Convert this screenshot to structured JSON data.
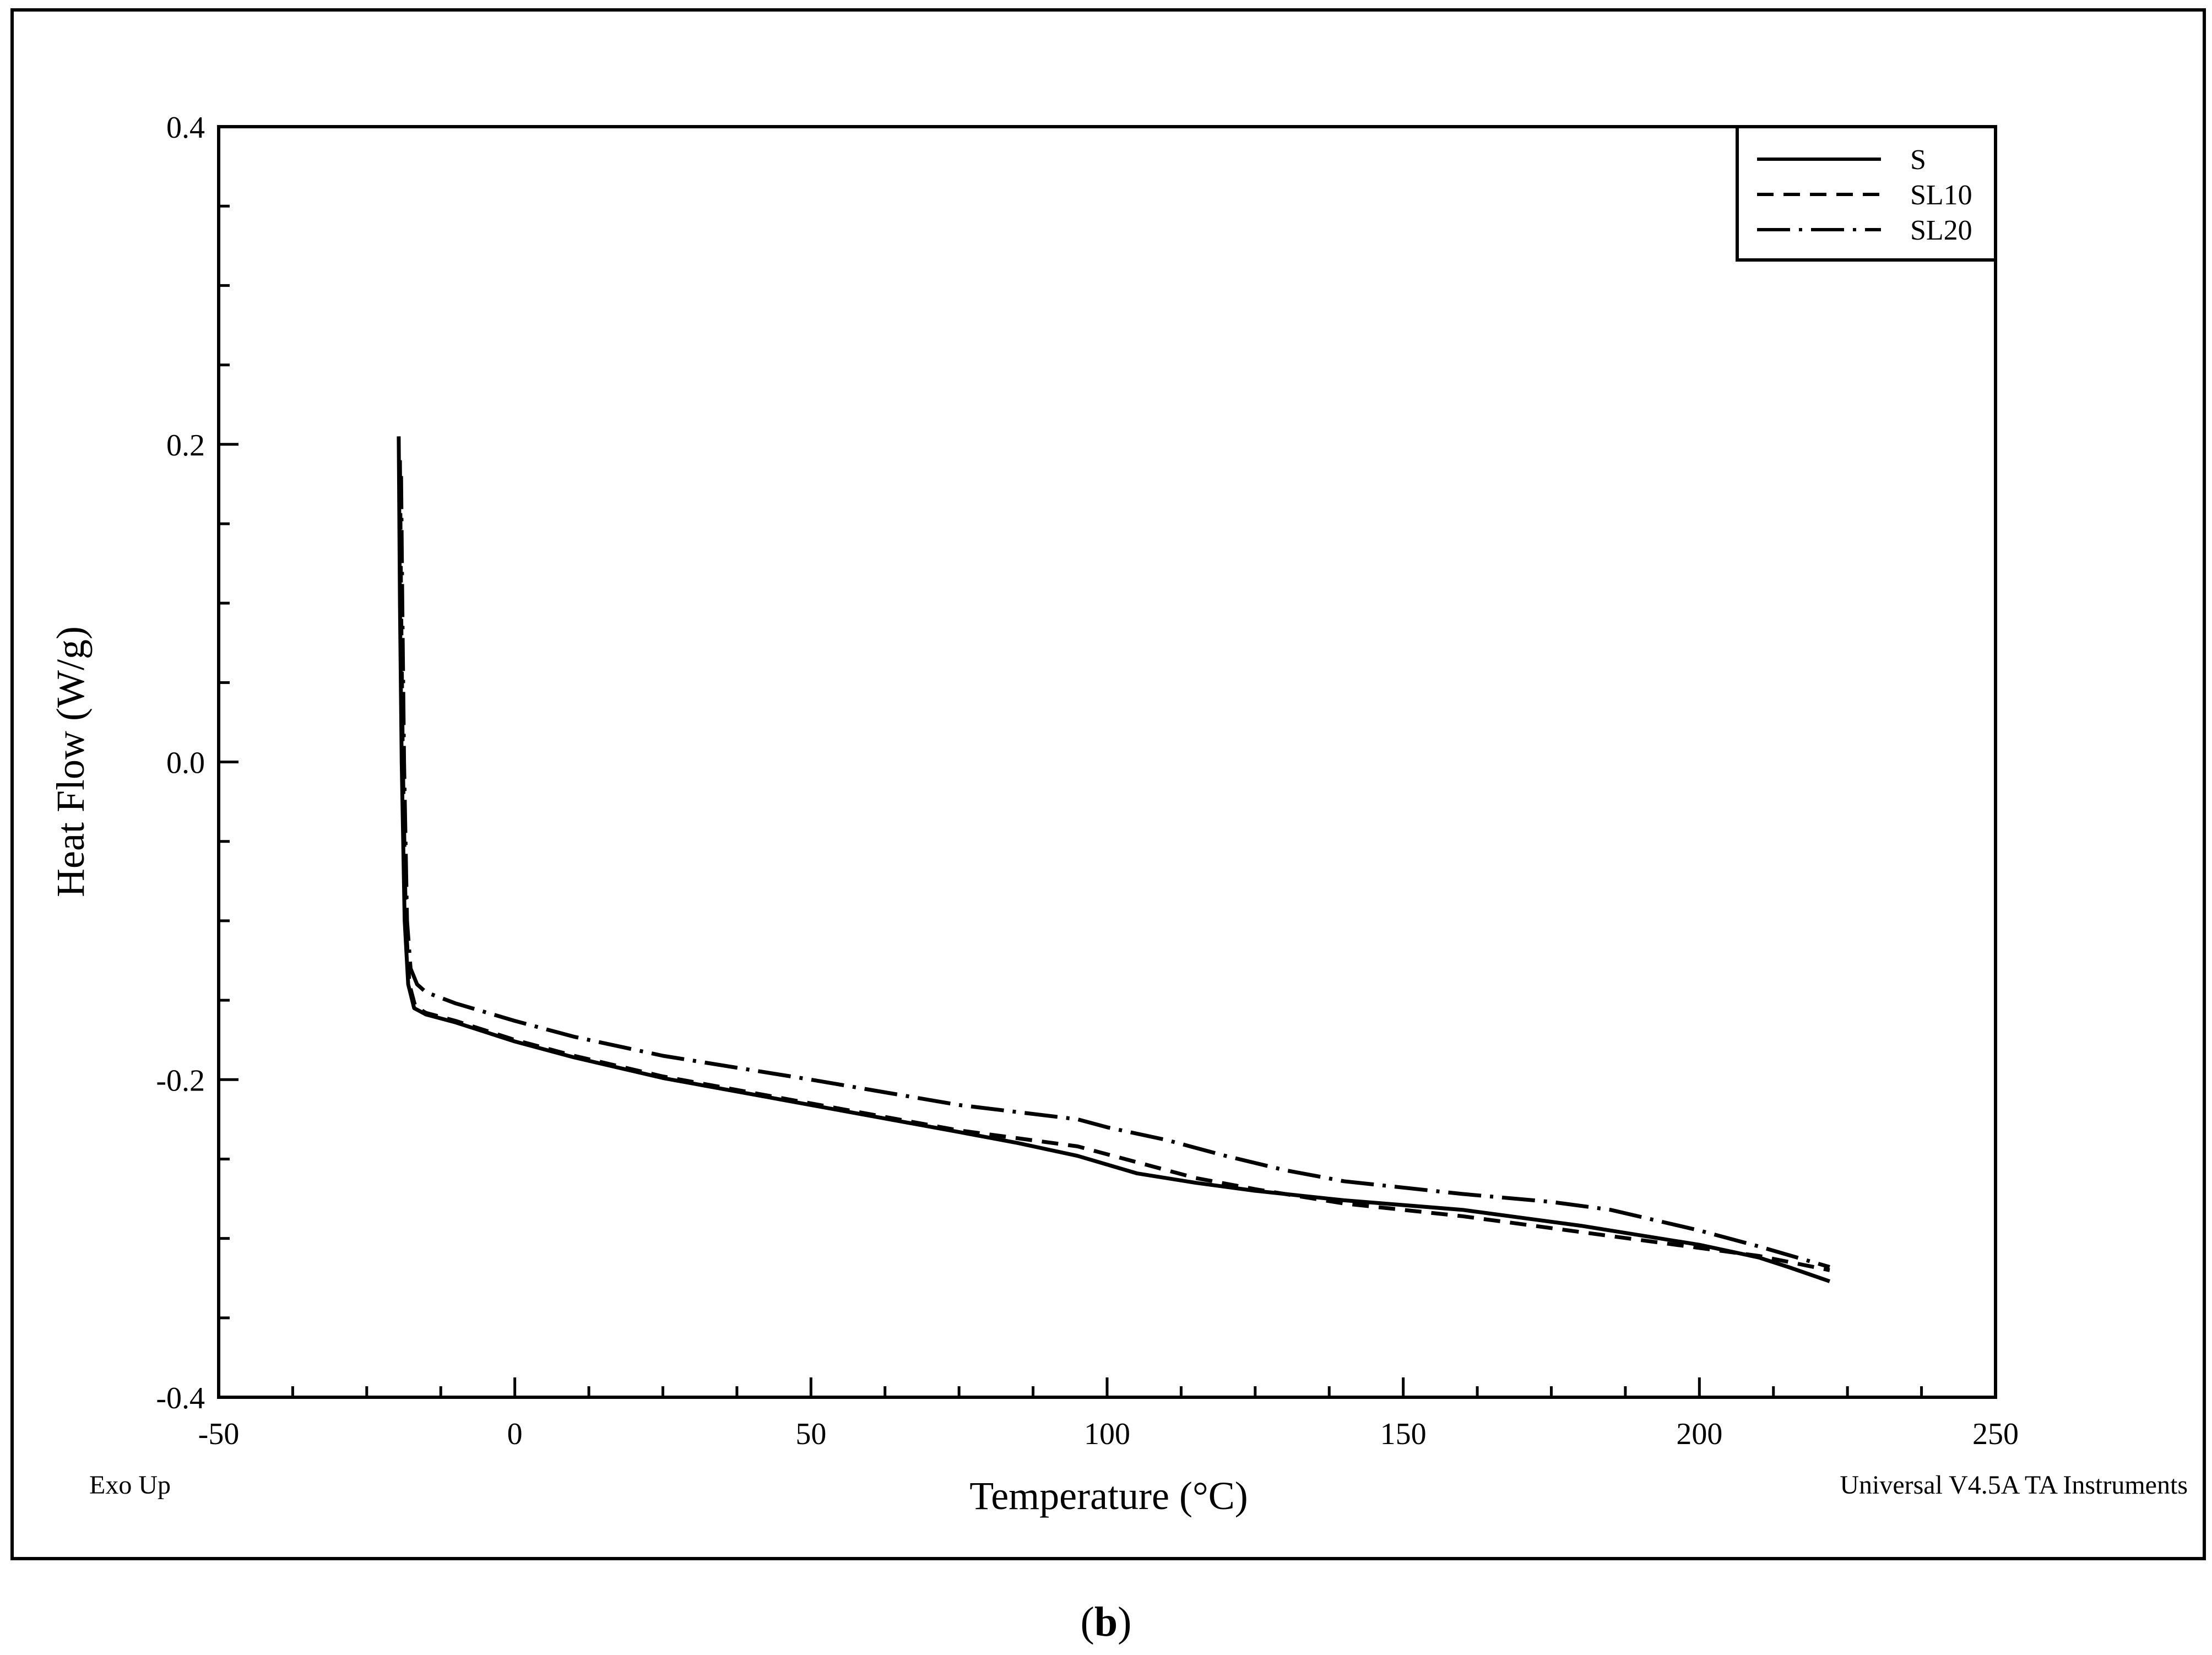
{
  "chart_data": {
    "type": "line",
    "xlabel": "Temperature (°C)",
    "ylabel": "Heat Flow (W/g)",
    "xlim": [
      -50,
      250
    ],
    "ylim": [
      -0.4,
      0.4
    ],
    "x_ticks": [
      -50,
      0,
      50,
      100,
      150,
      200,
      250
    ],
    "x_tick_labels": [
      "-50",
      "0",
      "50",
      "100",
      "150",
      "200",
      "250"
    ],
    "y_ticks": [
      -0.4,
      -0.2,
      0.0,
      0.2,
      0.4
    ],
    "y_tick_labels": [
      "-0.4",
      "-0.2",
      "0.0",
      "0.2",
      "0.4"
    ],
    "grid": false,
    "legend_position": "top-right",
    "series": [
      {
        "name": "S",
        "style": "solid",
        "points": [
          [
            -19.6,
            0.205
          ],
          [
            -19.4,
            0.1
          ],
          [
            -19.1,
            0.0
          ],
          [
            -18.6,
            -0.1
          ],
          [
            -18.0,
            -0.14
          ],
          [
            -17.0,
            -0.155
          ],
          [
            -15,
            -0.159
          ],
          [
            -10,
            -0.164
          ],
          [
            0,
            -0.176
          ],
          [
            10,
            -0.186
          ],
          [
            25,
            -0.199
          ],
          [
            50,
            -0.216
          ],
          [
            75,
            -0.233
          ],
          [
            85,
            -0.24
          ],
          [
            95,
            -0.248
          ],
          [
            105,
            -0.259
          ],
          [
            115,
            -0.265
          ],
          [
            125,
            -0.27
          ],
          [
            140,
            -0.276
          ],
          [
            160,
            -0.282
          ],
          [
            180,
            -0.292
          ],
          [
            200,
            -0.304
          ],
          [
            210,
            -0.312
          ],
          [
            215,
            -0.318
          ],
          [
            222,
            -0.327
          ]
        ]
      },
      {
        "name": "SL10",
        "style": "dashed",
        "points": [
          [
            -19.4,
            0.19
          ],
          [
            -19.2,
            0.1
          ],
          [
            -18.9,
            0.0
          ],
          [
            -18.4,
            -0.1
          ],
          [
            -17.8,
            -0.14
          ],
          [
            -16.8,
            -0.154
          ],
          [
            -15,
            -0.158
          ],
          [
            -10,
            -0.163
          ],
          [
            0,
            -0.175
          ],
          [
            10,
            -0.185
          ],
          [
            25,
            -0.198
          ],
          [
            50,
            -0.215
          ],
          [
            75,
            -0.232
          ],
          [
            85,
            -0.237
          ],
          [
            95,
            -0.242
          ],
          [
            105,
            -0.252
          ],
          [
            115,
            -0.262
          ],
          [
            125,
            -0.269
          ],
          [
            140,
            -0.278
          ],
          [
            160,
            -0.286
          ],
          [
            180,
            -0.296
          ],
          [
            200,
            -0.306
          ],
          [
            210,
            -0.311
          ],
          [
            222,
            -0.32
          ]
        ]
      },
      {
        "name": "SL20",
        "style": "dash-dot",
        "points": [
          [
            -19.2,
            0.18
          ],
          [
            -19.0,
            0.1
          ],
          [
            -18.7,
            0.0
          ],
          [
            -18.2,
            -0.1
          ],
          [
            -17.6,
            -0.13
          ],
          [
            -16.5,
            -0.14
          ],
          [
            -15,
            -0.145
          ],
          [
            -10,
            -0.152
          ],
          [
            0,
            -0.163
          ],
          [
            10,
            -0.173
          ],
          [
            25,
            -0.185
          ],
          [
            50,
            -0.2
          ],
          [
            75,
            -0.216
          ],
          [
            95,
            -0.225
          ],
          [
            100,
            -0.23
          ],
          [
            110,
            -0.238
          ],
          [
            120,
            -0.248
          ],
          [
            130,
            -0.257
          ],
          [
            140,
            -0.264
          ],
          [
            160,
            -0.272
          ],
          [
            175,
            -0.277
          ],
          [
            185,
            -0.282
          ],
          [
            200,
            -0.295
          ],
          [
            210,
            -0.305
          ],
          [
            222,
            -0.318
          ]
        ]
      }
    ]
  },
  "annotations": {
    "exo_up": "Exo Up",
    "instrument": "Universal V4.5A TA Instruments",
    "panel_label": "b",
    "panel_open": "(",
    "panel_close": ")"
  }
}
